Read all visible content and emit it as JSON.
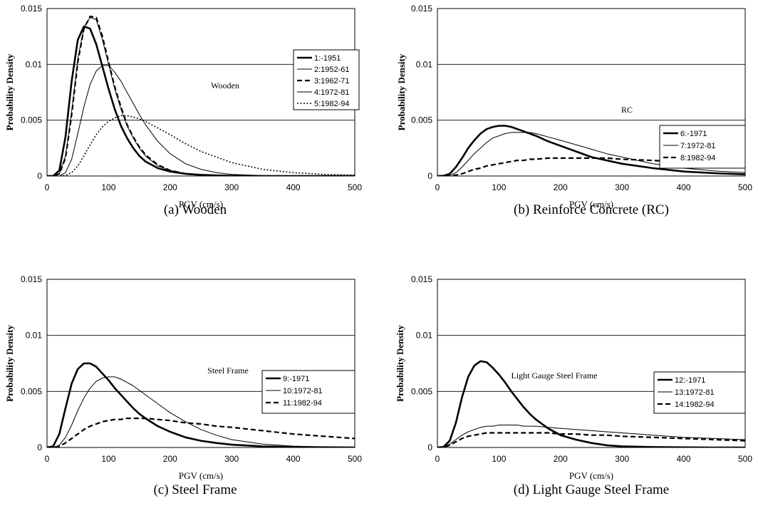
{
  "chart_data": [
    {
      "type": "line",
      "caption": "(a) Wooden",
      "annotation": "Wooden",
      "xlabel": "PGV (cm/s)",
      "ylabel": "Probability Density",
      "xlim": [
        0,
        500
      ],
      "ylim": [
        0,
        0.015
      ],
      "xticks": [
        "0",
        "100",
        "200",
        "300",
        "400",
        "500"
      ],
      "yticks": [
        "0",
        "0.005",
        "0.01",
        "0.015"
      ],
      "grid": "horizontal",
      "legend_position": "right-center",
      "x": [
        0,
        10,
        20,
        30,
        40,
        50,
        60,
        70,
        80,
        90,
        100,
        110,
        120,
        130,
        140,
        150,
        160,
        180,
        200,
        225,
        250,
        275,
        300,
        350,
        400,
        450,
        500
      ],
      "series": [
        {
          "name": "1:-1951",
          "style": "thick-solid",
          "values": [
            0,
            0,
            0.0005,
            0.0035,
            0.0085,
            0.0122,
            0.0134,
            0.0132,
            0.0118,
            0.0098,
            0.0078,
            0.006,
            0.0045,
            0.0034,
            0.0025,
            0.0018,
            0.0013,
            0.0007,
            0.0004,
            0.0002,
            0.0001,
            5e-05,
            2e-05,
            0,
            0,
            0,
            0
          ]
        },
        {
          "name": "2:1952-61",
          "style": "thin-solid",
          "values": [
            0,
            0,
            0.0002,
            0.0018,
            0.0058,
            0.0105,
            0.0133,
            0.0142,
            0.014,
            0.0122,
            0.01,
            0.0078,
            0.006,
            0.0045,
            0.0034,
            0.0025,
            0.0018,
            0.0009,
            0.0005,
            0.0002,
            0.0001,
            5e-05,
            2e-05,
            0,
            0,
            0,
            0
          ]
        },
        {
          "name": "3:1962-71",
          "style": "thick-dashed",
          "values": [
            0,
            0,
            0.0002,
            0.0016,
            0.0055,
            0.0102,
            0.0132,
            0.0143,
            0.0142,
            0.0125,
            0.0102,
            0.008,
            0.0062,
            0.0046,
            0.0035,
            0.0026,
            0.0019,
            0.001,
            0.0005,
            0.0002,
            0.0001,
            5e-05,
            2e-05,
            0,
            0,
            0,
            0
          ]
        },
        {
          "name": "4:1972-81",
          "style": "thin-solid",
          "values": [
            0,
            0,
            0,
            0.0003,
            0.0015,
            0.0038,
            0.0062,
            0.0082,
            0.0094,
            0.0099,
            0.0099,
            0.0093,
            0.0085,
            0.0075,
            0.0065,
            0.0055,
            0.0046,
            0.0031,
            0.002,
            0.0011,
            0.0006,
            0.0003,
            0.00015,
            4e-05,
            1e-05,
            0,
            0
          ]
        },
        {
          "name": "5:1982-94",
          "style": "dotted",
          "values": [
            0,
            0,
            0,
            5e-05,
            0.0003,
            0.0009,
            0.0018,
            0.0028,
            0.0037,
            0.0044,
            0.0049,
            0.0052,
            0.0054,
            0.0054,
            0.0053,
            0.0051,
            0.0049,
            0.0043,
            0.0037,
            0.0029,
            0.0022,
            0.0017,
            0.0012,
            0.0006,
            0.0003,
            0.00015,
            8e-05
          ]
        }
      ]
    },
    {
      "type": "line",
      "caption": "(b) Reinforce Concrete (RC)",
      "annotation": "RC",
      "xlabel": "PGV (cm/s)",
      "ylabel": "Probability Density",
      "xlim": [
        0,
        500
      ],
      "ylim": [
        0,
        0.015
      ],
      "xticks": [
        "0",
        "100",
        "200",
        "300",
        "400",
        "500"
      ],
      "yticks": [
        "0",
        "0.005",
        "0.01",
        "0.015"
      ],
      "grid": "horizontal",
      "legend_position": "right-center",
      "x": [
        0,
        10,
        20,
        30,
        40,
        50,
        60,
        70,
        80,
        90,
        100,
        110,
        120,
        130,
        140,
        150,
        160,
        180,
        200,
        225,
        250,
        275,
        300,
        350,
        400,
        450,
        500
      ],
      "series": [
        {
          "name": "6:-1971",
          "style": "thick-solid",
          "values": [
            0,
            2e-05,
            0.0002,
            0.0008,
            0.0016,
            0.0025,
            0.0032,
            0.0038,
            0.0042,
            0.0044,
            0.0045,
            0.0045,
            0.0044,
            0.0042,
            0.004,
            0.0038,
            0.0036,
            0.0031,
            0.0027,
            0.0022,
            0.0017,
            0.0014,
            0.0011,
            0.0007,
            0.0004,
            0.00025,
            0.00015
          ]
        },
        {
          "name": "7:1972-81",
          "style": "thin-solid",
          "values": [
            0,
            0,
            5e-05,
            0.0003,
            0.0008,
            0.0014,
            0.002,
            0.0025,
            0.003,
            0.0034,
            0.0036,
            0.0038,
            0.0039,
            0.0039,
            0.0039,
            0.0039,
            0.0038,
            0.0035,
            0.0032,
            0.0028,
            0.0024,
            0.002,
            0.0017,
            0.0011,
            0.0007,
            0.00045,
            0.0003
          ]
        },
        {
          "name": "8:1982-94",
          "style": "thick-dashed",
          "values": [
            0,
            0,
            2e-05,
            8e-05,
            0.0002,
            0.0004,
            0.0006,
            0.0007,
            0.0009,
            0.001,
            0.0011,
            0.0012,
            0.0013,
            0.0014,
            0.0014,
            0.0015,
            0.0015,
            0.0016,
            0.0016,
            0.0016,
            0.0016,
            0.0016,
            0.0015,
            0.0014,
            0.0012,
            0.0011,
            0.0009
          ]
        }
      ]
    },
    {
      "type": "line",
      "caption": "(c) Steel Frame",
      "annotation": "Steel Frame",
      "xlabel": "PGV (cm/s)",
      "ylabel": "Probability Density",
      "xlim": [
        0,
        500
      ],
      "ylim": [
        0,
        0.015
      ],
      "xticks": [
        "0",
        "100",
        "200",
        "300",
        "400",
        "500"
      ],
      "yticks": [
        "0",
        "0.005",
        "0.01",
        "0.015"
      ],
      "grid": "horizontal",
      "legend_position": "right-center",
      "x": [
        0,
        10,
        20,
        30,
        40,
        50,
        60,
        70,
        80,
        90,
        100,
        110,
        120,
        130,
        140,
        150,
        160,
        180,
        200,
        225,
        250,
        275,
        300,
        350,
        400,
        450,
        500
      ],
      "series": [
        {
          "name": "9:-1971",
          "style": "thick-solid",
          "values": [
            0,
            0.0001,
            0.0012,
            0.0035,
            0.0057,
            0.007,
            0.0075,
            0.0075,
            0.0072,
            0.0066,
            0.006,
            0.0053,
            0.0047,
            0.0041,
            0.0035,
            0.003,
            0.0026,
            0.0019,
            0.0014,
            0.0009,
            0.0006,
            0.0004,
            0.00025,
            0.0001,
            4e-05,
            2e-05,
            0
          ]
        },
        {
          "name": "10:1972-81",
          "style": "thin-solid",
          "values": [
            0,
            0,
            0.0002,
            0.0009,
            0.002,
            0.0033,
            0.0044,
            0.0053,
            0.0059,
            0.0062,
            0.0063,
            0.0063,
            0.0061,
            0.0058,
            0.0055,
            0.0051,
            0.0047,
            0.0039,
            0.0031,
            0.0023,
            0.0016,
            0.0011,
            0.0007,
            0.0003,
            0.00012,
            5e-05,
            2e-05
          ]
        },
        {
          "name": "11:1982-94",
          "style": "thick-dashed",
          "values": [
            0,
            0,
            0.0001,
            0.0004,
            0.0008,
            0.0012,
            0.0016,
            0.0019,
            0.0021,
            0.0023,
            0.0024,
            0.0025,
            0.0025,
            0.0026,
            0.0026,
            0.0026,
            0.0026,
            0.0025,
            0.0024,
            0.0022,
            0.0021,
            0.0019,
            0.0018,
            0.0015,
            0.0012,
            0.001,
            0.0008
          ]
        }
      ]
    },
    {
      "type": "line",
      "caption": "(d) Light Gauge Steel Frame",
      "annotation": "Light Gauge Steel Frame",
      "xlabel": "PGV (cm/s)",
      "ylabel": "Probability Density",
      "xlim": [
        0,
        500
      ],
      "ylim": [
        0,
        0.015
      ],
      "xticks": [
        "0",
        "100",
        "200",
        "300",
        "400",
        "500"
      ],
      "yticks": [
        "0",
        "0.005",
        "0.01",
        "0.015"
      ],
      "grid": "horizontal",
      "legend_position": "right-center",
      "x": [
        0,
        10,
        20,
        30,
        40,
        50,
        60,
        70,
        80,
        90,
        100,
        110,
        120,
        130,
        140,
        150,
        160,
        180,
        200,
        225,
        250,
        275,
        300,
        350,
        400,
        450,
        500
      ],
      "series": [
        {
          "name": "12:-1971",
          "style": "thick-solid",
          "values": [
            0,
            5e-05,
            0.0006,
            0.0022,
            0.0045,
            0.0063,
            0.0073,
            0.0077,
            0.0076,
            0.0071,
            0.0065,
            0.0058,
            0.005,
            0.0043,
            0.0036,
            0.003,
            0.0025,
            0.0017,
            0.0011,
            0.0007,
            0.0004,
            0.0002,
            0.0001,
            4e-05,
            1e-05,
            0,
            0
          ]
        },
        {
          "name": "13:1972-81",
          "style": "thin-solid",
          "values": [
            0,
            5e-05,
            0.0003,
            0.0007,
            0.0011,
            0.0014,
            0.0016,
            0.0018,
            0.0019,
            0.0019,
            0.002,
            0.002,
            0.002,
            0.002,
            0.0019,
            0.0019,
            0.0019,
            0.0018,
            0.0017,
            0.0016,
            0.0015,
            0.0014,
            0.0013,
            0.0011,
            0.0009,
            0.0008,
            0.0007
          ]
        },
        {
          "name": "14:1982-94",
          "style": "thick-dashed",
          "values": [
            0,
            3e-05,
            0.0002,
            0.0005,
            0.0008,
            0.001,
            0.0011,
            0.0012,
            0.0013,
            0.0013,
            0.0013,
            0.0013,
            0.0013,
            0.0013,
            0.0013,
            0.0013,
            0.0013,
            0.0013,
            0.0012,
            0.0012,
            0.0011,
            0.0011,
            0.001,
            0.0009,
            0.0008,
            0.0007,
            0.0006
          ]
        }
      ]
    }
  ]
}
